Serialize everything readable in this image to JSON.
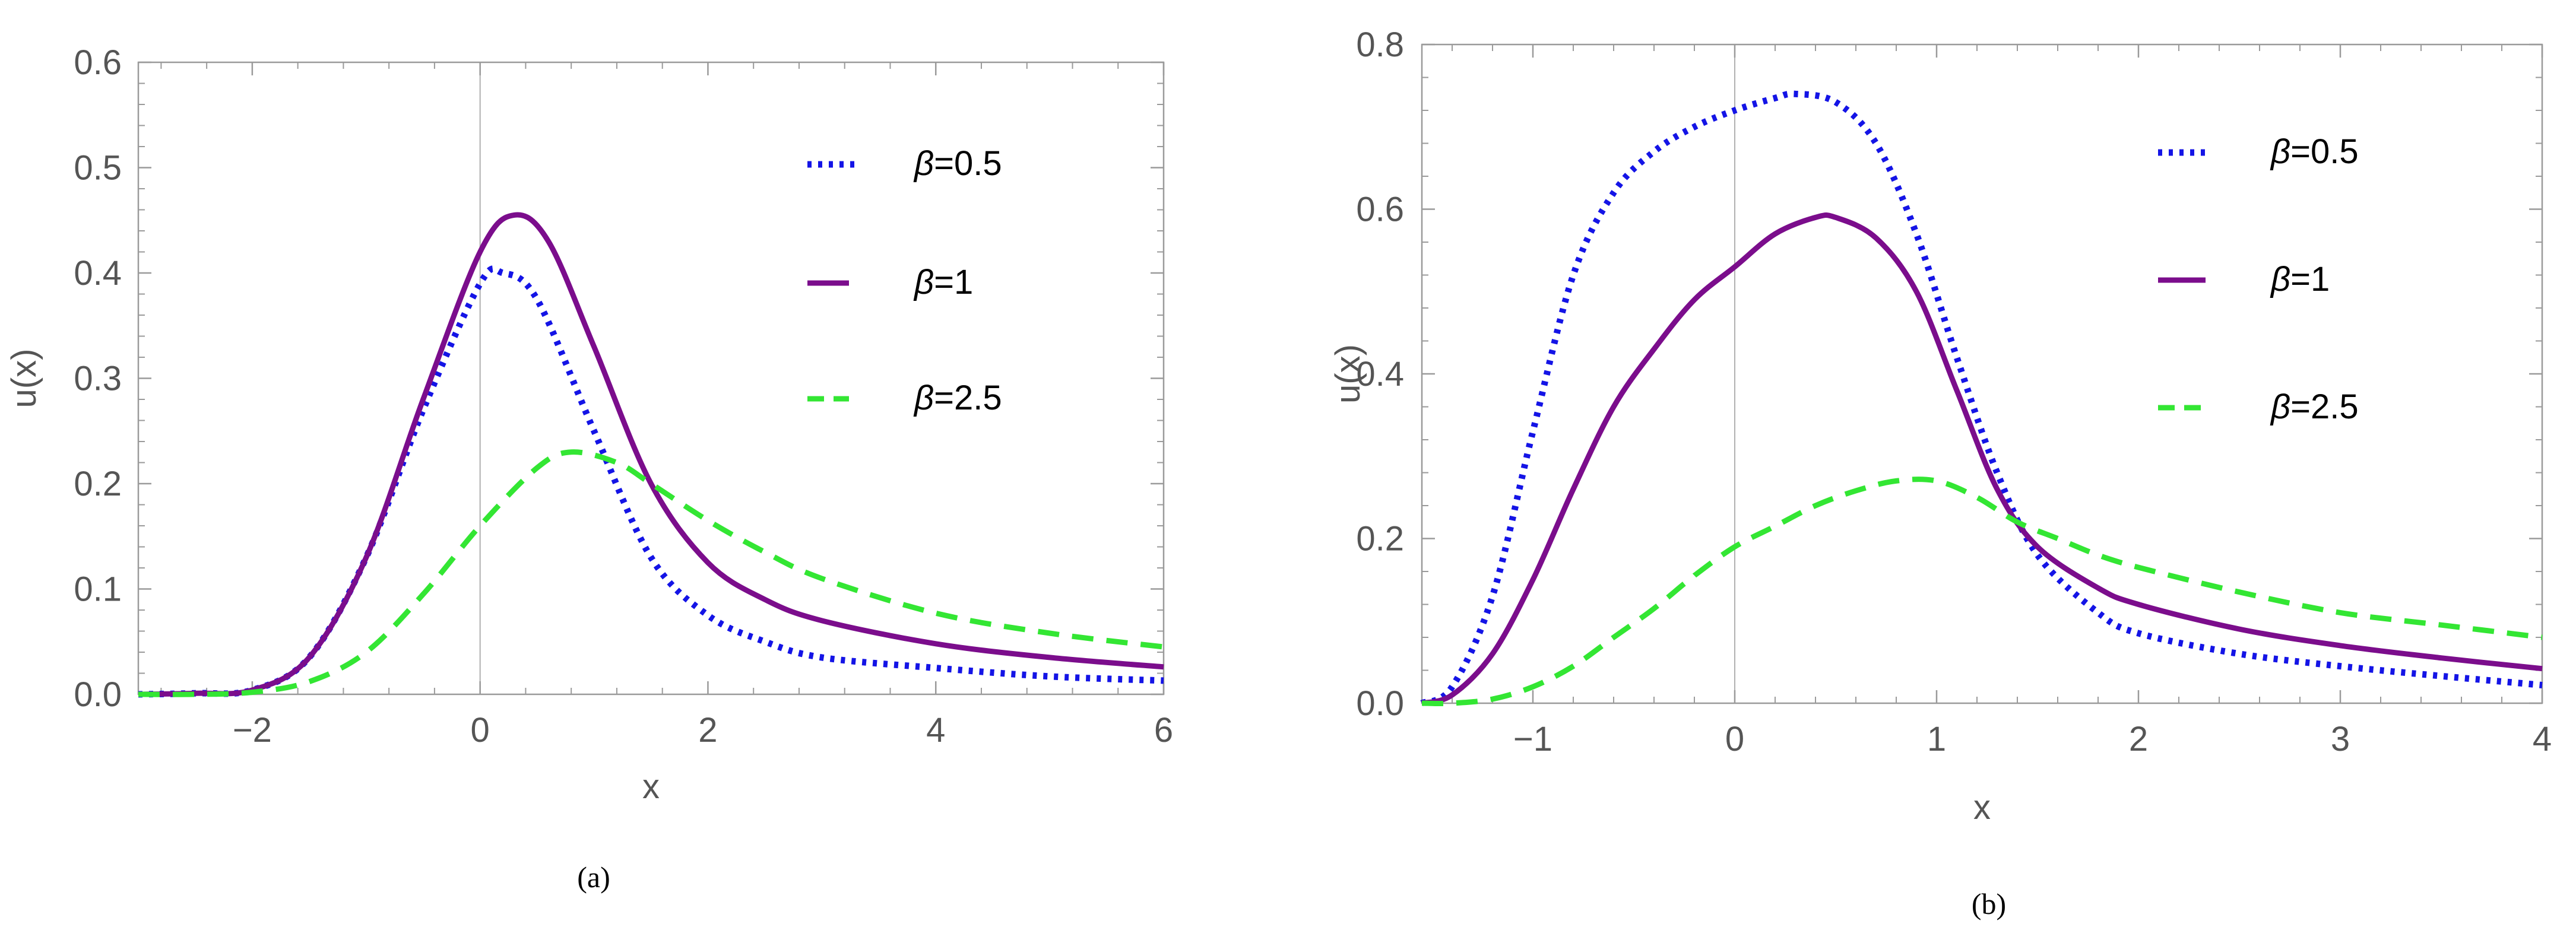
{
  "figure": {
    "captions": [
      "(a)",
      "(b)"
    ]
  },
  "chart_data": [
    {
      "type": "line",
      "title": "",
      "xlabel": "x",
      "ylabel": "u(x)",
      "xlim": [
        -3,
        6
      ],
      "ylim": [
        0,
        0.6
      ],
      "xticks": [
        -2,
        0,
        2,
        4,
        6
      ],
      "yticks": [
        0.0,
        0.1,
        0.2,
        0.3,
        0.4,
        0.5,
        0.6
      ],
      "xtick_labels": [
        "−2",
        "0",
        "2",
        "4",
        "6"
      ],
      "ytick_labels": [
        "0.0",
        "0.1",
        "0.2",
        "0.3",
        "0.4",
        "0.5",
        "0.6"
      ],
      "legend_position": "top-right",
      "series": [
        {
          "name": "β=0.5",
          "legend_symbol": "β",
          "legend_value": "=0.5",
          "style": "dotted",
          "color": "#1414e6",
          "x": [
            -3,
            -2.5,
            -2,
            -1.5,
            -1,
            -0.5,
            0,
            0.2,
            0.5,
            1,
            1.5,
            2,
            2.5,
            3,
            4,
            5,
            6
          ],
          "y": [
            0.0,
            0.001,
            0.004,
            0.035,
            0.13,
            0.27,
            0.39,
            0.4,
            0.375,
            0.25,
            0.13,
            0.075,
            0.05,
            0.035,
            0.025,
            0.017,
            0.013
          ]
        },
        {
          "name": "β=1",
          "legend_symbol": "β",
          "legend_value": "=1",
          "style": "solid",
          "color": "#7b0d8c",
          "x": [
            -3,
            -2.5,
            -2,
            -1.5,
            -1,
            -0.5,
            0,
            0.3,
            0.6,
            1,
            1.5,
            2,
            2.5,
            3,
            4,
            5,
            6
          ],
          "y": [
            0.0,
            0.001,
            0.004,
            0.035,
            0.13,
            0.28,
            0.42,
            0.455,
            0.43,
            0.33,
            0.2,
            0.125,
            0.09,
            0.07,
            0.048,
            0.035,
            0.026
          ]
        },
        {
          "name": "β=2.5",
          "legend_symbol": "β",
          "legend_value": "=2.5",
          "style": "dashed",
          "color": "#33e633",
          "x": [
            -3,
            -2.5,
            -2,
            -1.5,
            -1,
            -0.5,
            0,
            0.5,
            0.8,
            1.2,
            1.5,
            2,
            2.5,
            3,
            4,
            5,
            6
          ],
          "y": [
            0.0,
            0.0,
            0.002,
            0.012,
            0.04,
            0.095,
            0.16,
            0.215,
            0.23,
            0.22,
            0.2,
            0.165,
            0.135,
            0.11,
            0.077,
            0.058,
            0.045
          ]
        }
      ]
    },
    {
      "type": "line",
      "title": "",
      "xlabel": "x",
      "ylabel": "u(x)",
      "xlim": [
        -1.55,
        4
      ],
      "ylim": [
        0,
        0.8
      ],
      "xticks": [
        -1,
        0,
        1,
        2,
        3,
        4
      ],
      "yticks": [
        0.0,
        0.2,
        0.4,
        0.6,
        0.8
      ],
      "xtick_labels": [
        "−1",
        "0",
        "1",
        "2",
        "3",
        "4"
      ],
      "ytick_labels": [
        "0.0",
        "0.2",
        "0.4",
        "0.6",
        "0.8"
      ],
      "legend_position": "top-right",
      "series": [
        {
          "name": "β=0.5",
          "legend_symbol": "β",
          "legend_value": "=0.5",
          "style": "dotted",
          "color": "#1414e6",
          "x": [
            -1.55,
            -1.4,
            -1.2,
            -1.0,
            -0.8,
            -0.6,
            -0.4,
            -0.2,
            0.0,
            0.2,
            0.3,
            0.5,
            0.7,
            0.9,
            1.1,
            1.3,
            1.5,
            1.8,
            2.0,
            2.5,
            3.0,
            3.5,
            4.0
          ],
          "y": [
            0.0,
            0.02,
            0.13,
            0.33,
            0.52,
            0.62,
            0.67,
            0.7,
            0.72,
            0.735,
            0.74,
            0.73,
            0.68,
            0.57,
            0.42,
            0.28,
            0.18,
            0.11,
            0.085,
            0.06,
            0.045,
            0.033,
            0.022
          ]
        },
        {
          "name": "β=1",
          "legend_symbol": "β",
          "legend_value": "=1",
          "style": "solid",
          "color": "#7b0d8c",
          "x": [
            -1.55,
            -1.4,
            -1.2,
            -1.0,
            -0.8,
            -0.6,
            -0.4,
            -0.2,
            0.0,
            0.2,
            0.4,
            0.5,
            0.7,
            0.9,
            1.1,
            1.3,
            1.5,
            1.8,
            2.0,
            2.5,
            3.0,
            3.5,
            4.0
          ],
          "y": [
            0.0,
            0.01,
            0.06,
            0.15,
            0.26,
            0.36,
            0.43,
            0.49,
            0.53,
            0.57,
            0.59,
            0.59,
            0.565,
            0.5,
            0.38,
            0.26,
            0.19,
            0.14,
            0.12,
            0.09,
            0.07,
            0.055,
            0.042
          ]
        },
        {
          "name": "β=2.5",
          "legend_symbol": "β",
          "legend_value": "=2.5",
          "style": "dashed",
          "color": "#33e633",
          "x": [
            -1.55,
            -1.4,
            -1.2,
            -1.0,
            -0.8,
            -0.6,
            -0.4,
            -0.2,
            0.0,
            0.2,
            0.4,
            0.6,
            0.8,
            1.0,
            1.2,
            1.4,
            1.6,
            1.8,
            2.0,
            2.5,
            3.0,
            3.5,
            4.0
          ],
          "y": [
            0.0,
            0.0,
            0.005,
            0.02,
            0.045,
            0.08,
            0.115,
            0.155,
            0.19,
            0.215,
            0.24,
            0.258,
            0.27,
            0.27,
            0.25,
            0.22,
            0.2,
            0.18,
            0.165,
            0.135,
            0.11,
            0.095,
            0.08
          ]
        }
      ]
    }
  ]
}
